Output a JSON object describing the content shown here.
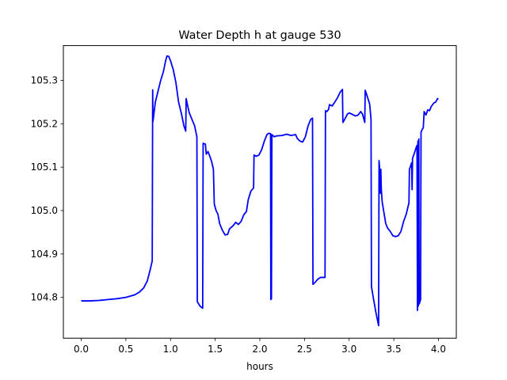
{
  "chart_data": {
    "type": "line",
    "title": "Water Depth h at gauge 530",
    "xlabel": "hours",
    "ylabel": "",
    "xlim": [
      -0.2,
      4.2
    ],
    "ylim": [
      104.706,
      105.38
    ],
    "xticks": [
      0.0,
      0.5,
      1.0,
      1.5,
      2.0,
      2.5,
      3.0,
      3.5,
      4.0
    ],
    "xtick_labels": [
      "0.0",
      "0.5",
      "1.0",
      "1.5",
      "2.0",
      "2.5",
      "3.0",
      "3.5",
      "4.0"
    ],
    "yticks": [
      104.8,
      104.9,
      105.0,
      105.1,
      105.2,
      105.3
    ],
    "ytick_labels": [
      "104.8",
      "104.9",
      "105.0",
      "105.1",
      "105.2",
      "105.3"
    ],
    "grid": false,
    "line_color": "#0000ff",
    "series": [
      {
        "points": [
          [
            0.0,
            104.792
          ],
          [
            0.1,
            104.792
          ],
          [
            0.2,
            104.793
          ],
          [
            0.3,
            104.795
          ],
          [
            0.4,
            104.797
          ],
          [
            0.5,
            104.8
          ],
          [
            0.6,
            104.806
          ],
          [
            0.65,
            104.812
          ],
          [
            0.7,
            104.822
          ],
          [
            0.74,
            104.838
          ],
          [
            0.77,
            104.862
          ],
          [
            0.795,
            104.884
          ],
          [
            0.8,
            105.278
          ],
          [
            0.803,
            105.205
          ],
          [
            0.83,
            105.25
          ],
          [
            0.86,
            105.275
          ],
          [
            0.89,
            105.3
          ],
          [
            0.92,
            105.32
          ],
          [
            0.945,
            105.345
          ],
          [
            0.96,
            105.356
          ],
          [
            0.98,
            105.355
          ],
          [
            1.0,
            105.345
          ],
          [
            1.03,
            105.325
          ],
          [
            1.06,
            105.295
          ],
          [
            1.09,
            105.25
          ],
          [
            1.12,
            105.225
          ],
          [
            1.15,
            105.195
          ],
          [
            1.17,
            105.183
          ],
          [
            1.175,
            105.258
          ],
          [
            1.19,
            105.243
          ],
          [
            1.21,
            105.225
          ],
          [
            1.24,
            105.21
          ],
          [
            1.27,
            105.195
          ],
          [
            1.295,
            105.17
          ],
          [
            1.3,
            104.79
          ],
          [
            1.33,
            104.78
          ],
          [
            1.36,
            104.775
          ],
          [
            1.365,
            105.155
          ],
          [
            1.39,
            105.153
          ],
          [
            1.4,
            105.13
          ],
          [
            1.42,
            105.136
          ],
          [
            1.44,
            105.125
          ],
          [
            1.46,
            105.113
          ],
          [
            1.48,
            105.095
          ],
          [
            1.49,
            105.015
          ],
          [
            1.51,
            105.0
          ],
          [
            1.53,
            104.992
          ],
          [
            1.55,
            104.97
          ],
          [
            1.58,
            104.955
          ],
          [
            1.61,
            104.944
          ],
          [
            1.64,
            104.945
          ],
          [
            1.66,
            104.958
          ],
          [
            1.7,
            104.965
          ],
          [
            1.73,
            104.973
          ],
          [
            1.76,
            104.968
          ],
          [
            1.79,
            104.975
          ],
          [
            1.82,
            104.99
          ],
          [
            1.85,
            104.998
          ],
          [
            1.87,
            105.025
          ],
          [
            1.9,
            105.045
          ],
          [
            1.93,
            105.052
          ],
          [
            1.935,
            105.128
          ],
          [
            1.96,
            105.125
          ],
          [
            1.99,
            105.128
          ],
          [
            2.02,
            105.14
          ],
          [
            2.05,
            105.16
          ],
          [
            2.08,
            105.175
          ],
          [
            2.1,
            105.178
          ],
          [
            2.12,
            105.177
          ],
          [
            2.123,
            104.795
          ],
          [
            2.13,
            104.797
          ],
          [
            2.135,
            105.175
          ],
          [
            2.16,
            105.17
          ],
          [
            2.19,
            105.172
          ],
          [
            2.25,
            105.173
          ],
          [
            2.3,
            105.176
          ],
          [
            2.35,
            105.173
          ],
          [
            2.4,
            105.175
          ],
          [
            2.42,
            105.166
          ],
          [
            2.45,
            105.16
          ],
          [
            2.48,
            105.158
          ],
          [
            2.51,
            105.17
          ],
          [
            2.54,
            105.195
          ],
          [
            2.57,
            105.21
          ],
          [
            2.59,
            105.213
          ],
          [
            2.595,
            104.83
          ],
          [
            2.62,
            104.835
          ],
          [
            2.65,
            104.842
          ],
          [
            2.68,
            104.846
          ],
          [
            2.73,
            104.846
          ],
          [
            2.735,
            105.23
          ],
          [
            2.75,
            105.228
          ],
          [
            2.77,
            105.233
          ],
          [
            2.78,
            105.244
          ],
          [
            2.81,
            105.241
          ],
          [
            2.84,
            105.25
          ],
          [
            2.87,
            105.26
          ],
          [
            2.9,
            105.273
          ],
          [
            2.925,
            105.279
          ],
          [
            2.93,
            105.203
          ],
          [
            2.95,
            105.21
          ],
          [
            2.98,
            105.222
          ],
          [
            3.0,
            105.225
          ],
          [
            3.03,
            105.222
          ],
          [
            3.07,
            105.218
          ],
          [
            3.1,
            105.22
          ],
          [
            3.13,
            105.228
          ],
          [
            3.15,
            105.222
          ],
          [
            3.175,
            105.203
          ],
          [
            3.18,
            105.277
          ],
          [
            3.2,
            105.265
          ],
          [
            3.23,
            105.245
          ],
          [
            3.245,
            105.21
          ],
          [
            3.25,
            104.825
          ],
          [
            3.27,
            104.8
          ],
          [
            3.3,
            104.765
          ],
          [
            3.33,
            104.735
          ],
          [
            3.335,
            105.115
          ],
          [
            3.345,
            105.085
          ],
          [
            3.35,
            105.04
          ],
          [
            3.355,
            105.095
          ],
          [
            3.36,
            105.05
          ],
          [
            3.37,
            105.02
          ],
          [
            3.39,
            104.995
          ],
          [
            3.41,
            104.97
          ],
          [
            3.43,
            104.96
          ],
          [
            3.46,
            104.952
          ],
          [
            3.49,
            104.942
          ],
          [
            3.52,
            104.94
          ],
          [
            3.55,
            104.942
          ],
          [
            3.58,
            104.952
          ],
          [
            3.61,
            104.975
          ],
          [
            3.64,
            104.992
          ],
          [
            3.67,
            105.018
          ],
          [
            3.675,
            105.095
          ],
          [
            3.7,
            105.11
          ],
          [
            3.705,
            105.048
          ],
          [
            3.71,
            105.12
          ],
          [
            3.73,
            105.132
          ],
          [
            3.75,
            105.145
          ],
          [
            3.76,
            105.15
          ],
          [
            3.765,
            104.77
          ],
          [
            3.77,
            105.16
          ],
          [
            3.775,
            104.78
          ],
          [
            3.78,
            105.165
          ],
          [
            3.785,
            104.785
          ],
          [
            3.8,
            104.795
          ],
          [
            3.805,
            105.18
          ],
          [
            3.82,
            105.188
          ],
          [
            3.83,
            105.19
          ],
          [
            3.84,
            105.228
          ],
          [
            3.86,
            105.22
          ],
          [
            3.88,
            105.232
          ],
          [
            3.9,
            105.23
          ],
          [
            3.92,
            105.24
          ],
          [
            3.95,
            105.248
          ],
          [
            3.97,
            105.25
          ],
          [
            3.99,
            105.258
          ],
          [
            4.0,
            105.257
          ]
        ]
      }
    ]
  }
}
